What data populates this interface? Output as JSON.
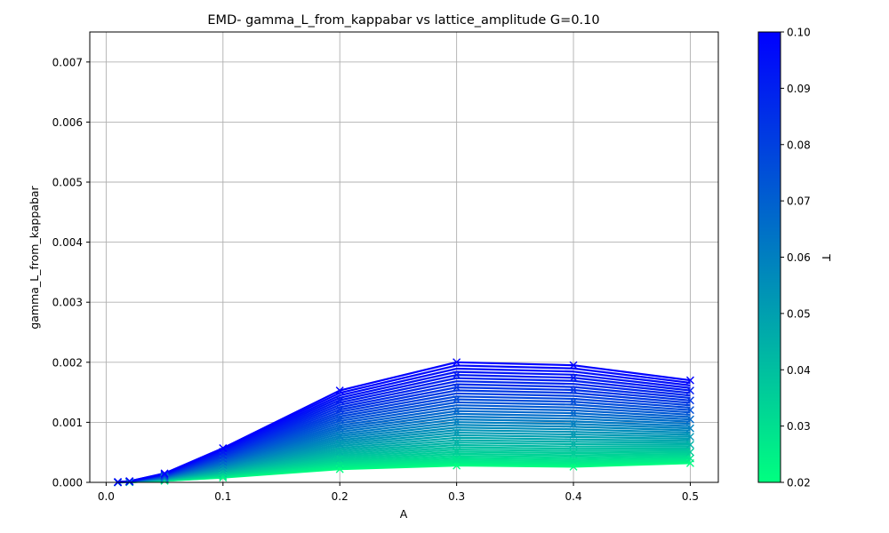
{
  "chart_data": {
    "type": "line",
    "title": "EMD- gamma_L_from_kappabar vs lattice_amplitude G=0.10",
    "xlabel": "A",
    "ylabel": "gamma_L_from_kappabar",
    "xlim": [
      -0.014,
      0.524
    ],
    "ylim": [
      0.0,
      0.0075
    ],
    "xticks": [
      0.0,
      0.1,
      0.2,
      0.3,
      0.4,
      0.5
    ],
    "xtick_labels": [
      "0.0",
      "0.1",
      "0.2",
      "0.3",
      "0.4",
      "0.5"
    ],
    "yticks": [
      0.0,
      0.001,
      0.002,
      0.003,
      0.004,
      0.005,
      0.006,
      0.007
    ],
    "ytick_labels": [
      "0.000",
      "0.001",
      "0.002",
      "0.003",
      "0.004",
      "0.005",
      "0.006",
      "0.007"
    ],
    "grid": true,
    "marker": "x",
    "x": [
      0.01,
      0.02,
      0.05,
      0.1,
      0.2,
      0.3,
      0.4,
      0.5
    ],
    "series_variable": "T",
    "series_T_range": [
      0.02,
      0.1
    ],
    "series_count": 41,
    "series_low": {
      "T": 0.02,
      "values": [
        0.0,
        3e-06,
        2.5e-05,
        8e-05,
        0.00022,
        0.00028,
        0.00026,
        0.00032
      ]
    },
    "series_high": {
      "T": 0.1,
      "values": [
        5e-06,
        2e-05,
        0.00015,
        0.00057,
        0.00153,
        0.002,
        0.00195,
        0.0017
      ]
    },
    "colorbar": {
      "label": "T",
      "range": [
        0.02,
        0.1
      ],
      "ticks": [
        0.02,
        0.03,
        0.04,
        0.05,
        0.06,
        0.07,
        0.08,
        0.09,
        0.1
      ],
      "tick_labels": [
        "0.02",
        "0.03",
        "0.04",
        "0.05",
        "0.06",
        "0.07",
        "0.08",
        "0.09",
        "0.10"
      ],
      "color_low": "#00ff80",
      "color_high": "#0000ff"
    },
    "grid_color": "#b0b0b0"
  }
}
